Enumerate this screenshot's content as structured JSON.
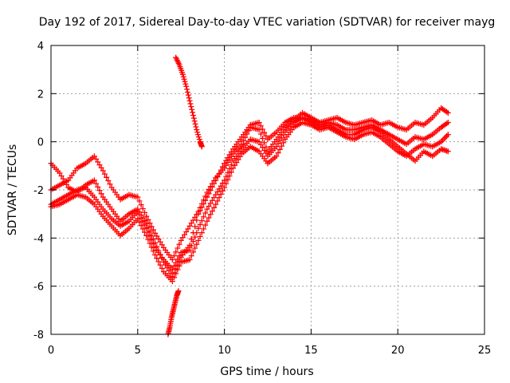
{
  "chart_data": {
    "type": "scatter",
    "title": "Day 192 of 2017, Sidereal Day-to-day VTEC variation (SDTVAR) for receiver mayg",
    "xlabel": "GPS time / hours",
    "ylabel": "SDTVAR / TECUs",
    "xlim": [
      0,
      25
    ],
    "ylim": [
      -8,
      4
    ],
    "xticks": [
      "0",
      "5",
      "10",
      "15",
      "20",
      "25"
    ],
    "yticks": [
      "4",
      "2",
      "0",
      "-2",
      "-4",
      "-6",
      "-8"
    ],
    "grid": true,
    "marker": "+",
    "color": "#ff0000",
    "series": [
      {
        "name": "trace-1",
        "x": [
          0.0,
          0.5,
          1.0,
          1.5,
          2.0,
          2.5,
          3.0,
          3.5,
          4.0,
          4.5,
          5.0,
          5.5,
          6.0,
          6.5,
          7.0,
          7.5,
          8.0,
          8.5,
          9.0,
          9.5,
          10.0,
          10.5,
          11.0,
          11.5,
          12.0,
          12.5,
          13.0,
          13.5,
          14.0,
          14.5,
          15.0,
          15.5,
          16.0,
          16.5,
          17.0,
          17.5,
          18.0,
          18.5,
          19.0,
          19.5,
          20.0,
          20.5,
          21.0,
          21.5,
          22.0,
          22.5,
          22.9
        ],
        "y": [
          -2.0,
          -1.8,
          -1.6,
          -1.1,
          -0.9,
          -0.6,
          -1.2,
          -1.9,
          -2.4,
          -2.2,
          -2.3,
          -3.1,
          -3.8,
          -4.4,
          -4.9,
          -4.1,
          -3.5,
          -2.9,
          -2.1,
          -1.5,
          -1.1,
          -0.5,
          -0.1,
          0.6,
          0.5,
          -0.4,
          0.1,
          0.6,
          0.9,
          1.2,
          1.0,
          0.8,
          0.9,
          1.0,
          0.8,
          0.7,
          0.8,
          0.9,
          0.7,
          0.8,
          0.6,
          0.5,
          0.8,
          0.7,
          1.0,
          1.4,
          1.2
        ]
      },
      {
        "name": "trace-2",
        "x": [
          0.0,
          0.5,
          1.0,
          1.5,
          2.0,
          2.5,
          3.0,
          3.5,
          4.0,
          4.5,
          5.0,
          5.5,
          6.0,
          6.5,
          7.0,
          7.5,
          8.0,
          8.5,
          9.0,
          9.5,
          10.0,
          10.5,
          11.0,
          11.5,
          12.0,
          12.5,
          13.0,
          13.5,
          14.0,
          14.5,
          15.0,
          15.5,
          16.0,
          16.5,
          17.0,
          17.5,
          18.0,
          18.5,
          19.0,
          19.5,
          20.0,
          20.5,
          21.0,
          21.5,
          22.0,
          22.5,
          22.9
        ],
        "y": [
          -0.9,
          -1.3,
          -1.9,
          -2.1,
          -1.8,
          -1.6,
          -2.3,
          -2.8,
          -3.3,
          -3.0,
          -2.8,
          -3.4,
          -4.2,
          -5.0,
          -5.6,
          -4.8,
          -4.3,
          -3.0,
          -2.3,
          -1.6,
          -0.9,
          -0.3,
          0.2,
          0.7,
          0.8,
          0.1,
          0.4,
          0.8,
          1.0,
          1.0,
          0.9,
          0.7,
          0.8,
          0.7,
          0.5,
          0.5,
          0.6,
          0.7,
          0.5,
          0.3,
          0.1,
          -0.1,
          0.2,
          0.1,
          0.3,
          0.6,
          0.8
        ]
      },
      {
        "name": "trace-3",
        "x": [
          0.0,
          0.5,
          1.0,
          1.5,
          2.0,
          2.5,
          3.0,
          3.5,
          4.0,
          4.5,
          5.0,
          5.5,
          6.0,
          6.5,
          7.0,
          7.5,
          8.0,
          8.5,
          9.0,
          9.5,
          10.0,
          10.5,
          11.0,
          11.5,
          12.0,
          12.5,
          13.0,
          13.5,
          14.0,
          14.5,
          15.0,
          15.5,
          16.0,
          16.5,
          17.0,
          17.5,
          18.0,
          18.5,
          19.0,
          19.5,
          20.0,
          20.5,
          21.0,
          21.5,
          22.0,
          22.5,
          22.9
        ],
        "y": [
          -2.7,
          -2.6,
          -2.4,
          -2.2,
          -2.3,
          -2.6,
          -3.1,
          -3.5,
          -3.9,
          -3.6,
          -3.2,
          -3.9,
          -4.7,
          -5.4,
          -5.8,
          -5.0,
          -4.9,
          -4.1,
          -3.3,
          -2.6,
          -1.9,
          -1.1,
          -0.5,
          -0.2,
          -0.4,
          -0.9,
          -0.6,
          0.1,
          0.6,
          0.8,
          0.7,
          0.5,
          0.6,
          0.4,
          0.2,
          0.1,
          0.3,
          0.4,
          0.2,
          -0.1,
          -0.4,
          -0.6,
          -0.3,
          -0.1,
          -0.2,
          0.0,
          0.3
        ]
      },
      {
        "name": "trace-4",
        "x": [
          0.0,
          0.5,
          1.0,
          1.5,
          2.0,
          2.5,
          3.0,
          3.5,
          4.0,
          4.5,
          5.0,
          5.5,
          6.0,
          6.5,
          7.0,
          7.5,
          8.0,
          8.5,
          9.0,
          9.5,
          10.0,
          10.5,
          11.0,
          11.5,
          12.0,
          12.5,
          13.0,
          13.5,
          14.0,
          14.5,
          15.0,
          15.5,
          16.0,
          16.5,
          17.0,
          17.5,
          18.0,
          18.5,
          19.0,
          19.5,
          20.0,
          20.5,
          21.0,
          21.5,
          22.0,
          22.5,
          22.9
        ],
        "y": [
          -2.6,
          -2.4,
          -2.2,
          -2.0,
          -1.9,
          -2.3,
          -2.8,
          -3.2,
          -3.5,
          -3.3,
          -2.9,
          -3.6,
          -4.4,
          -4.9,
          -5.3,
          -4.6,
          -4.5,
          -3.6,
          -2.8,
          -2.2,
          -1.6,
          -0.8,
          -0.3,
          0.1,
          0.0,
          -0.6,
          -0.2,
          0.4,
          0.8,
          1.0,
          0.8,
          0.6,
          0.7,
          0.5,
          0.3,
          0.3,
          0.5,
          0.6,
          0.4,
          0.1,
          -0.2,
          -0.5,
          -0.8,
          -0.4,
          -0.6,
          -0.3,
          -0.4
        ]
      },
      {
        "name": "trace-5",
        "x": [
          7.2,
          7.4,
          7.6,
          7.8,
          8.0,
          8.2,
          8.4,
          8.6,
          8.7
        ],
        "y": [
          3.5,
          3.2,
          2.8,
          2.3,
          1.7,
          1.1,
          0.5,
          0.0,
          -0.2
        ]
      },
      {
        "name": "trace-6",
        "x": [
          6.75,
          6.85,
          6.95,
          7.05,
          7.15,
          7.25,
          7.35
        ],
        "y": [
          -8.0,
          -7.7,
          -7.3,
          -7.0,
          -6.7,
          -6.4,
          -6.2
        ]
      }
    ]
  }
}
